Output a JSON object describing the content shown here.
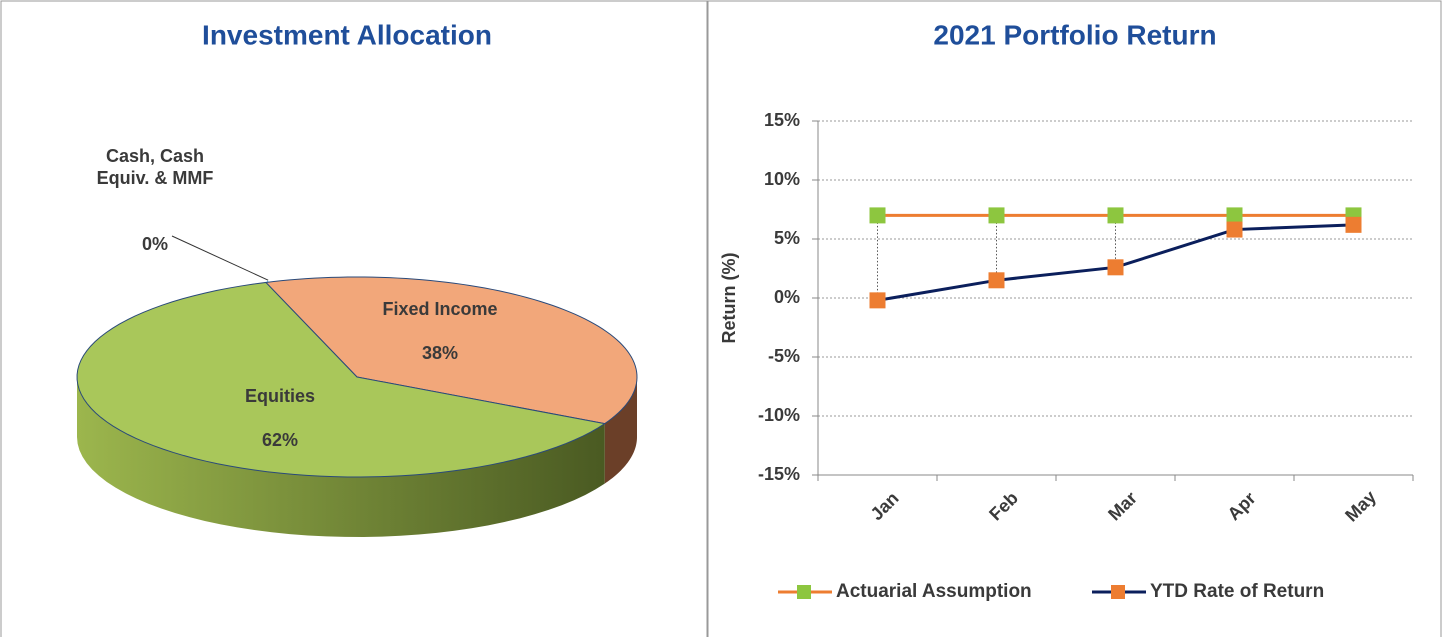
{
  "chart_data": [
    {
      "type": "pie",
      "title": "Investment Allocation",
      "categories": [
        "Cash, Cash Equiv. & MMF",
        "Fixed Income",
        "Equities"
      ],
      "values": [
        0,
        38,
        62
      ],
      "value_labels": [
        "0%",
        "38%",
        "62%"
      ],
      "colors": [
        "#4fb3e8",
        "#f2a77a",
        "#a9c75a"
      ]
    },
    {
      "type": "line",
      "title": "2021 Portfolio Return",
      "ylabel": "Return (%)",
      "categories": [
        "Jan",
        "Feb",
        "Mar",
        "Apr",
        "May"
      ],
      "series": [
        {
          "name": "Actuarial Assumption",
          "color": "#ed7d31",
          "marker_color": "#8dc63f",
          "values": [
            7,
            7,
            7,
            7,
            7
          ]
        },
        {
          "name": "YTD Rate of Return",
          "color": "#0b1f5c",
          "marker_color": "#ed7d31",
          "values": [
            -0.2,
            1.5,
            2.6,
            5.8,
            6.2
          ]
        }
      ],
      "ylim": [
        -15,
        15
      ],
      "yticks": [
        {
          "value": -15,
          "label": "-15%"
        },
        {
          "value": -10,
          "label": "-10%"
        },
        {
          "value": -5,
          "label": "-5%"
        },
        {
          "value": 0,
          "label": "0%"
        },
        {
          "value": 5,
          "label": "5%"
        },
        {
          "value": 10,
          "label": "10%"
        },
        {
          "value": 15,
          "label": "15%"
        }
      ],
      "grid": true,
      "legend": "bottom"
    }
  ]
}
